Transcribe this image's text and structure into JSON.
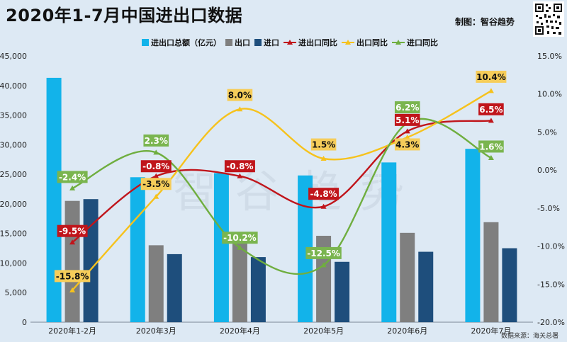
{
  "header": {
    "title": "2020年1-7月中国进出口数据",
    "credit": "制图：智谷趋势",
    "source": "数据来源：海关总署"
  },
  "watermark": "智谷趋势",
  "colors": {
    "total": "#12b3ea",
    "export": "#7f7f7f",
    "import": "#1e4e7c",
    "total_yoy": "#c0151b",
    "export_yoy": "#f6c21c",
    "import_yoy": "#6fae3f",
    "label_total_bg": "#c0151b",
    "label_export_bg": "#f6cd5a",
    "label_import_bg": "#7ab54f"
  },
  "chart_data": {
    "type": "bar",
    "categories": [
      "2020年1-2月",
      "2020年3月",
      "2020年4月",
      "2020年5月",
      "2020年6月",
      "2020年7月"
    ],
    "y_left": {
      "ticks": [
        "0",
        "5,000",
        "10,000",
        "15,000",
        "20,000",
        "25,000",
        "30,000",
        "35,000",
        "40,000",
        "45,000"
      ],
      "range": [
        0,
        45000
      ]
    },
    "y_right": {
      "ticks": [
        "-20.0%",
        "-15.0%",
        "-10.0%",
        "-5.0%",
        "0.0%",
        "5.0%",
        "10.0%",
        "15.0%"
      ],
      "range": [
        -20,
        15
      ]
    },
    "series": [
      {
        "name": "进出口总额（亿元）",
        "kind": "bar",
        "axis": "left",
        "color_key": "total",
        "values": [
          41300,
          24500,
          25200,
          24800,
          27000,
          29300
        ]
      },
      {
        "name": "出口",
        "kind": "bar",
        "axis": "left",
        "color_key": "export",
        "values": [
          20500,
          13000,
          14300,
          14600,
          15100,
          16900
        ]
      },
      {
        "name": "进口",
        "kind": "bar",
        "axis": "left",
        "color_key": "import",
        "values": [
          20800,
          11500,
          11000,
          10200,
          11900,
          12500
        ]
      },
      {
        "name": "进出口同比",
        "kind": "line",
        "axis": "right",
        "color_key": "total_yoy",
        "values": [
          -9.5,
          -0.8,
          -0.8,
          -4.8,
          5.1,
          6.5
        ],
        "labels": [
          "-9.5%",
          "-0.8%",
          "-0.8%",
          "-4.8%",
          "5.1%",
          "6.5%"
        ]
      },
      {
        "name": "出口同比",
        "kind": "line",
        "axis": "right",
        "color_key": "export_yoy",
        "values": [
          -15.8,
          -3.5,
          8.0,
          1.5,
          4.3,
          10.4
        ],
        "labels": [
          "-15.8%",
          "-3.5%",
          "8.0%",
          "1.5%",
          "4.3%",
          "10.4%"
        ]
      },
      {
        "name": "进口同比",
        "kind": "line",
        "axis": "right",
        "color_key": "import_yoy",
        "values": [
          -2.4,
          2.3,
          -10.2,
          -12.5,
          6.2,
          1.6
        ],
        "labels": [
          "-2.4%",
          "2.3%",
          "-10.2%",
          "-12.5%",
          "6.2%",
          "1.6%"
        ]
      }
    ],
    "legend_position": "top-center",
    "grid": false
  }
}
